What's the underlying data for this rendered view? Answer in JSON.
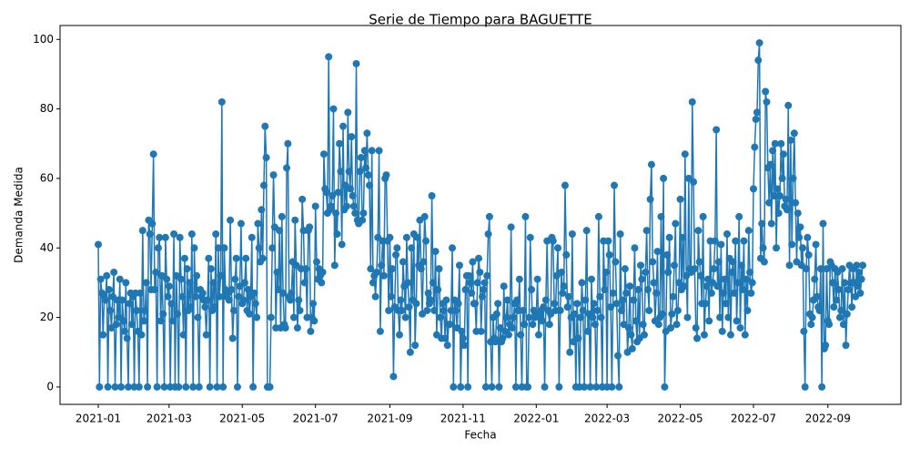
{
  "chart_data": {
    "type": "line",
    "title": "Serie de Tiempo para BAGUETTE",
    "xlabel": "Fecha",
    "ylabel": "Demanda Medida",
    "grid": false,
    "ylim": [
      -5,
      104
    ],
    "yticks": [
      0,
      20,
      40,
      60,
      80,
      100
    ],
    "categories": [
      "2021-01",
      null,
      null,
      null,
      null,
      null,
      null,
      null,
      null,
      null,
      null,
      null,
      null,
      null,
      null,
      null,
      null,
      null,
      null,
      null,
      null,
      null,
      null,
      null,
      null,
      null,
      null,
      null,
      null,
      null,
      null,
      null,
      null,
      null,
      null,
      null,
      null,
      null,
      null,
      null,
      null,
      null,
      null,
      null,
      null,
      null,
      null,
      null,
      null,
      null,
      null,
      null,
      null,
      null,
      null,
      null,
      null,
      null,
      null,
      "2021-03",
      null,
      null,
      null,
      null,
      null,
      null,
      null,
      null,
      null,
      null,
      null,
      null,
      null,
      null,
      null,
      null,
      null,
      null,
      null,
      null,
      null,
      null,
      null,
      null,
      null,
      null,
      null,
      null,
      null,
      null,
      null,
      null,
      null,
      null,
      null,
      null,
      null,
      null,
      null,
      null,
      null,
      null,
      null,
      null,
      null,
      null,
      null,
      null,
      null,
      null,
      null,
      null,
      null,
      null,
      null,
      null,
      null,
      null,
      null,
      null,
      "2021-05",
      null,
      null,
      null,
      null,
      null,
      null,
      null,
      null,
      null,
      null,
      null,
      null,
      null,
      null,
      null,
      null,
      null,
      null,
      null,
      null,
      null,
      null,
      null,
      null,
      null,
      null,
      null,
      null,
      null,
      null,
      null,
      null,
      null,
      null,
      null,
      null,
      null,
      null,
      null,
      null,
      null,
      null,
      null,
      null,
      null,
      null,
      null,
      null,
      null,
      null,
      null,
      null,
      null,
      null,
      null,
      null,
      null,
      null,
      null,
      null,
      "2021-07",
      null,
      null,
      null,
      null,
      null,
      null,
      null,
      null,
      null,
      null,
      null,
      null,
      null,
      null,
      null,
      null,
      null,
      null,
      null,
      null,
      null,
      null,
      null,
      null,
      null,
      null,
      null,
      null,
      null,
      null,
      null,
      null,
      null,
      null,
      null,
      null,
      null,
      null,
      null,
      null,
      null,
      null,
      null,
      null,
      null,
      null,
      null,
      null,
      null,
      null,
      null,
      null,
      null,
      null,
      null,
      null,
      null,
      null,
      null,
      null,
      null,
      "2021-09",
      null,
      null,
      null,
      null,
      null,
      null,
      null,
      null,
      null,
      null,
      null,
      null,
      null,
      null,
      null,
      null,
      null,
      null,
      null,
      null,
      null,
      null,
      null,
      null,
      null,
      null,
      null,
      null,
      null,
      null,
      null,
      null,
      null,
      null,
      null,
      null,
      null,
      null,
      null,
      null,
      null,
      null,
      null,
      null,
      null,
      null,
      null,
      null,
      null,
      null,
      null,
      null,
      null,
      null,
      null,
      null,
      null,
      null,
      null,
      null,
      "2021-11",
      null,
      null,
      null,
      null,
      null,
      null,
      null,
      null,
      null,
      null,
      null,
      null,
      null,
      null,
      null,
      null,
      null,
      null,
      null,
      null,
      null,
      null,
      null,
      null,
      null,
      null,
      null,
      null,
      null,
      null,
      null,
      null,
      null,
      null,
      null,
      null,
      null,
      null,
      null,
      null,
      null,
      null,
      null,
      null,
      null,
      null,
      null,
      null,
      null,
      null,
      null,
      null,
      null,
      null,
      null,
      null,
      null,
      null,
      null,
      null,
      "2022-01",
      null,
      null,
      null,
      null,
      null,
      null,
      null,
      null,
      null,
      null,
      null,
      null,
      null,
      null,
      null,
      null,
      null,
      null,
      null,
      null,
      null,
      null,
      null,
      null,
      null,
      null,
      null,
      null,
      null,
      null,
      null,
      null,
      null,
      null,
      null,
      null,
      null,
      null,
      null,
      null,
      null,
      null,
      null,
      null,
      null,
      null,
      null,
      null,
      null,
      null,
      null,
      null,
      null,
      null,
      null,
      null,
      null,
      null,
      "2022-03",
      null,
      null,
      null,
      null,
      null,
      null,
      null,
      null,
      null,
      null,
      null,
      null,
      null,
      null,
      null,
      null,
      null,
      null,
      null,
      null,
      null,
      null,
      null,
      null,
      null,
      null,
      null,
      null,
      null,
      null,
      null,
      null,
      null,
      null,
      null,
      null,
      null,
      null,
      null,
      null,
      null,
      null,
      null,
      null,
      null,
      null,
      null,
      null,
      null,
      null,
      null,
      null,
      null,
      null,
      null,
      null,
      null,
      null,
      null,
      null,
      "2022-05",
      null,
      null,
      null,
      null,
      null,
      null,
      null,
      null,
      null,
      null,
      null,
      null,
      null,
      null,
      null,
      null,
      null,
      null,
      null,
      null,
      null,
      null,
      null,
      null,
      null,
      null,
      null,
      null,
      null,
      null,
      null,
      null,
      null,
      null,
      null,
      null,
      null,
      null,
      null,
      null,
      null,
      null,
      null,
      null,
      null,
      null,
      null,
      null,
      null,
      null,
      null,
      null,
      null,
      null,
      null,
      null,
      null,
      null,
      null,
      null,
      "2022-07",
      null,
      null,
      null,
      null,
      null,
      null,
      null,
      null,
      null,
      null,
      null,
      null,
      null,
      null,
      null,
      null,
      null,
      null,
      null,
      null,
      null,
      null,
      null,
      null,
      null,
      null,
      null,
      null,
      null,
      null,
      null,
      null,
      null,
      null,
      null,
      null,
      null,
      null,
      null,
      null,
      null,
      null,
      null,
      null,
      null,
      null,
      null,
      null,
      null,
      null,
      null,
      null,
      null,
      null,
      null,
      null,
      null,
      null,
      null,
      null,
      null,
      "2022-09",
      null,
      null,
      null,
      null,
      null,
      null,
      null,
      null,
      null,
      null,
      null,
      null,
      null,
      null,
      null,
      null,
      null,
      null,
      null,
      null,
      null,
      null,
      null,
      null,
      null,
      null,
      null,
      null,
      null
    ],
    "series": [
      {
        "color": "#1f77b4",
        "values": [
          41,
          0,
          31,
          27,
          15,
          26,
          25,
          32,
          0,
          28,
          22,
          17,
          26,
          33,
          0,
          18,
          25,
          20,
          31,
          0,
          25,
          19,
          16,
          30,
          14,
          0,
          24,
          27,
          18,
          26,
          0,
          27,
          22,
          16,
          0,
          27,
          15,
          45,
          19,
          22,
          30,
          0,
          48,
          44,
          28,
          47,
          67,
          28,
          33,
          0,
          40,
          43,
          19,
          32,
          21,
          0,
          43,
          31,
          26,
          29,
          0,
          24,
          19,
          44,
          0,
          32,
          21,
          0,
          43,
          31,
          26,
          15,
          37,
          0,
          34,
          22,
          30,
          23,
          44,
          0,
          40,
          26,
          32,
          20,
          0,
          28,
          26,
          27,
          25,
          23,
          15,
          25,
          37,
          0,
          34,
          22,
          30,
          23,
          44,
          0,
          40,
          26,
          32,
          82,
          0,
          40,
          28,
          26,
          27,
          25,
          48,
          28,
          14,
          22,
          31,
          37,
          0,
          26,
          29,
          47,
          24,
          25,
          30,
          37,
          22,
          28,
          21,
          26,
          43,
          0,
          27,
          24,
          20,
          47,
          40,
          36,
          51,
          37,
          58,
          75,
          66,
          0,
          0,
          0,
          20,
          40,
          61,
          46,
          17,
          33,
          28,
          45,
          17,
          49,
          27,
          18,
          17,
          63,
          70,
          26,
          25,
          27,
          36,
          20,
          48,
          35,
          17,
          25,
          22,
          34,
          54,
          45,
          30,
          34,
          20,
          45,
          46,
          16,
          20,
          24,
          19,
          52,
          36,
          31,
          34,
          32,
          30,
          33,
          67,
          57,
          56,
          50,
          95,
          51,
          52,
          55,
          80,
          35,
          50,
          44,
          56,
          70,
          62,
          41,
          75,
          51,
          58,
          52,
          79,
          62,
          57,
          72,
          55,
          52,
          50,
          93,
          48,
          47,
          62,
          66,
          48,
          50,
          68,
          63,
          73,
          61,
          58,
          34,
          68,
          30,
          32,
          26,
          33,
          43,
          68,
          16,
          35,
          42,
          32,
          60,
          61,
          42,
          22,
          43,
          26,
          34,
          3,
          23,
          38,
          40,
          22,
          15,
          25,
          22,
          36,
          29,
          20,
          43,
          30,
          23,
          10,
          40,
          25,
          44,
          12,
          24,
          43,
          35,
          48,
          34,
          21,
          36,
          49,
          42,
          22,
          27,
          24,
          25,
          55,
          30,
          22,
          39,
          15,
          28,
          34,
          20,
          14,
          24,
          22,
          14,
          25,
          12,
          18,
          18,
          22,
          40,
          0,
          25,
          22,
          17,
          24,
          35,
          0,
          16,
          14,
          12,
          28,
          32,
          0,
          32,
          30,
          27,
          36,
          24,
          24,
          16,
          30,
          37,
          33,
          16,
          26,
          28,
          30,
          0,
          32,
          44,
          49,
          13,
          0,
          20,
          14,
          13,
          21,
          24,
          0,
          17,
          13,
          14,
          29,
          16,
          20,
          25,
          15,
          18,
          46,
          17,
          20,
          24,
          0,
          25,
          22,
          31,
          15,
          0,
          22,
          18,
          49,
          0,
          0,
          20,
          43,
          28,
          18,
          22,
          20,
          21,
          31,
          15,
          20,
          22,
          19,
          23,
          0,
          25,
          42,
          22,
          18,
          21,
          43,
          42,
          24,
          22,
          32,
          40,
          0,
          22,
          33,
          27,
          29,
          58,
          38,
          23,
          26,
          10,
          20,
          44,
          13,
          21,
          0,
          24,
          14,
          0,
          20,
          30,
          22,
          0,
          25,
          45,
          16,
          21,
          0,
          31,
          20,
          24,
          18,
          0,
          22,
          49,
          26,
          20,
          0,
          42,
          28,
          33,
          0,
          42,
          38,
          23,
          0,
          27,
          58,
          36,
          24,
          9,
          0,
          44,
          22,
          25,
          18,
          34,
          27,
          10,
          17,
          29,
          15,
          11,
          25,
          40,
          19,
          13,
          28,
          14,
          35,
          31,
          18,
          15,
          33,
          45,
          28,
          22,
          54,
          64,
          36,
          30,
          19,
          27,
          39,
          18,
          20,
          49,
          21,
          60,
          0,
          16,
          38,
          33,
          43,
          17,
          21,
          26,
          35,
          47,
          18,
          22,
          30,
          54,
          28,
          43,
          29,
          67,
          32,
          20,
          60,
          34,
          33,
          82,
          59,
          34,
          17,
          14,
          45,
          36,
          32,
          24,
          49,
          15,
          24,
          29,
          31,
          19,
          42,
          27,
          30,
          34,
          42,
          74,
          29,
          36,
          20,
          41,
          16,
          27,
          31,
          24,
          44,
          20,
          37,
          15,
          33,
          36,
          27,
          42,
          19,
          30,
          49,
          17,
          35,
          28,
          42,
          15,
          31,
          22,
          45,
          33,
          27,
          30,
          57,
          69,
          77,
          79,
          94,
          99,
          37,
          47,
          40,
          36,
          85,
          82,
          63,
          53,
          64,
          47,
          68,
          55,
          70,
          40,
          57,
          50,
          55,
          70,
          60,
          67,
          52,
          54,
          51,
          81,
          35,
          71,
          41,
          60,
          73,
          53,
          36,
          50,
          43,
          46,
          35,
          40,
          16,
          0,
          34,
          43,
          38,
          21,
          18,
          20,
          25,
          31,
          41,
          26,
          23,
          22,
          34,
          0,
          47,
          11,
          12,
          34,
          19,
          18,
          36,
          35,
          30,
          23,
          34,
          25,
          33,
          28,
          20,
          22,
          34,
          18,
          30,
          12,
          21,
          28,
          35,
          30,
          23,
          34,
          30,
          26,
          35,
          29,
          33,
          27,
          31,
          35
        ]
      }
    ]
  }
}
